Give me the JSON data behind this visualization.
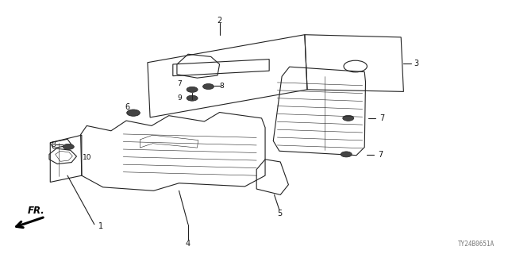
{
  "background_color": "#ffffff",
  "diagram_code": "TY24B0651A",
  "figsize": [
    6.4,
    3.2
  ],
  "dpi": 100,
  "line_color": "#222222",
  "text_color": "#111111",
  "dark_color": "#444444"
}
